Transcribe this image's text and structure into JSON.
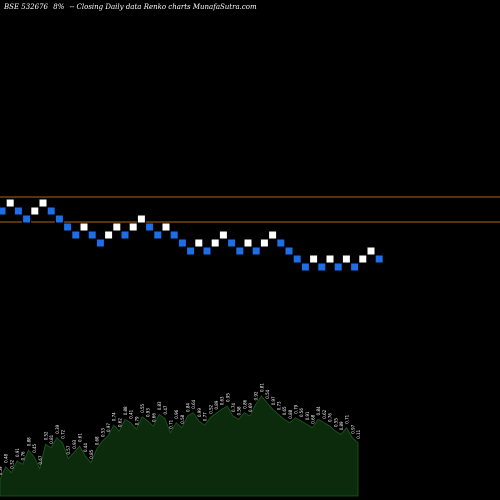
{
  "header": {
    "symbol": "BSE 532676",
    "change": "8%",
    "description": "-- Closing Daily data Renko charts MunafaSutra.com"
  },
  "colors": {
    "background": "#000000",
    "up_brick": "#ffffff",
    "down_brick": "#1e6fe6",
    "brick_border": "#000000",
    "level_line": "#b0621a",
    "volume_fill": "#0c2a0c",
    "volume_edge": "#1c5a1c",
    "volume_label": "#ffffff"
  },
  "chart_data": {
    "type": "renko",
    "title": "",
    "xlabel": "",
    "ylabel": "",
    "reference_levels": [
      1.0,
      0.0
    ],
    "bricks": [
      {
        "level": 0.5,
        "direction": "down"
      },
      {
        "level": 1.0,
        "direction": "up"
      },
      {
        "level": 0.5,
        "direction": "down"
      },
      {
        "level": 0.0,
        "direction": "down"
      },
      {
        "level": 0.5,
        "direction": "up"
      },
      {
        "level": 1.0,
        "direction": "up"
      },
      {
        "level": 0.5,
        "direction": "down"
      },
      {
        "level": 0.0,
        "direction": "down"
      },
      {
        "level": -0.5,
        "direction": "down"
      },
      {
        "level": -1.0,
        "direction": "down"
      },
      {
        "level": -0.5,
        "direction": "up"
      },
      {
        "level": -1.0,
        "direction": "down"
      },
      {
        "level": -1.5,
        "direction": "down"
      },
      {
        "level": -1.0,
        "direction": "up"
      },
      {
        "level": -0.5,
        "direction": "up"
      },
      {
        "level": -1.0,
        "direction": "down"
      },
      {
        "level": -0.5,
        "direction": "up"
      },
      {
        "level": 0.0,
        "direction": "up"
      },
      {
        "level": -0.5,
        "direction": "down"
      },
      {
        "level": -1.0,
        "direction": "down"
      },
      {
        "level": -0.5,
        "direction": "up"
      },
      {
        "level": -1.0,
        "direction": "down"
      },
      {
        "level": -1.5,
        "direction": "down"
      },
      {
        "level": -2.0,
        "direction": "down"
      },
      {
        "level": -1.5,
        "direction": "up"
      },
      {
        "level": -2.0,
        "direction": "down"
      },
      {
        "level": -1.5,
        "direction": "up"
      },
      {
        "level": -1.0,
        "direction": "up"
      },
      {
        "level": -1.5,
        "direction": "down"
      },
      {
        "level": -2.0,
        "direction": "down"
      },
      {
        "level": -1.5,
        "direction": "up"
      },
      {
        "level": -2.0,
        "direction": "down"
      },
      {
        "level": -1.5,
        "direction": "up"
      },
      {
        "level": -1.0,
        "direction": "up"
      },
      {
        "level": -1.5,
        "direction": "down"
      },
      {
        "level": -2.0,
        "direction": "down"
      },
      {
        "level": -2.5,
        "direction": "down"
      },
      {
        "level": -3.0,
        "direction": "down"
      },
      {
        "level": -2.5,
        "direction": "up"
      },
      {
        "level": -3.0,
        "direction": "down"
      },
      {
        "level": -2.5,
        "direction": "up"
      },
      {
        "level": -3.0,
        "direction": "down"
      },
      {
        "level": -2.5,
        "direction": "up"
      },
      {
        "level": -3.0,
        "direction": "down"
      },
      {
        "level": -2.5,
        "direction": "up"
      },
      {
        "level": -2.0,
        "direction": "up"
      },
      {
        "level": -2.5,
        "direction": "down"
      }
    ],
    "volume": {
      "values": [
        20,
        35,
        28,
        42,
        38,
        55,
        47,
        33,
        62,
        58,
        70,
        64,
        45,
        52,
        60,
        48,
        40,
        56,
        66,
        72,
        85,
        78,
        92,
        88,
        80,
        95,
        90,
        84,
        98,
        93,
        76,
        88,
        82,
        96,
        100,
        90,
        85,
        94,
        99,
        104,
        108,
        96,
        92,
        100,
        96,
        110,
        120,
        112,
        104,
        98,
        92,
        88,
        94,
        90,
        86,
        82,
        92,
        88,
        84,
        78,
        74,
        82,
        70,
        64
      ],
      "labels": [
        "0.59",
        "0.48",
        "0.32",
        "0.91",
        "0.76",
        "0.88",
        "0.45",
        "0.67",
        "0.52",
        "0.81",
        "0.39",
        "0.72",
        "0.57",
        "0.93",
        "0.61",
        "0.44",
        "0.85",
        "0.68",
        "0.53",
        "0.97",
        "0.74",
        "0.62",
        "0.88",
        "0.41",
        "0.79",
        "0.55",
        "0.93",
        "0.66",
        "0.83",
        "0.47",
        "0.71",
        "0.96",
        "0.58",
        "0.84",
        "0.64",
        "0.99",
        "0.77",
        "0.52",
        "0.89",
        "0.63",
        "0.95",
        "0.74",
        "0.58",
        "0.86",
        "0.69",
        "0.92",
        "0.81",
        "0.54",
        "0.97",
        "0.73",
        "0.65",
        "0.88",
        "0.79",
        "0.56",
        "0.91",
        "0.68",
        "0.84",
        "0.62",
        "0.76",
        "0.55",
        "0.89",
        "0.71",
        "0.97",
        "0.11"
      ]
    }
  }
}
